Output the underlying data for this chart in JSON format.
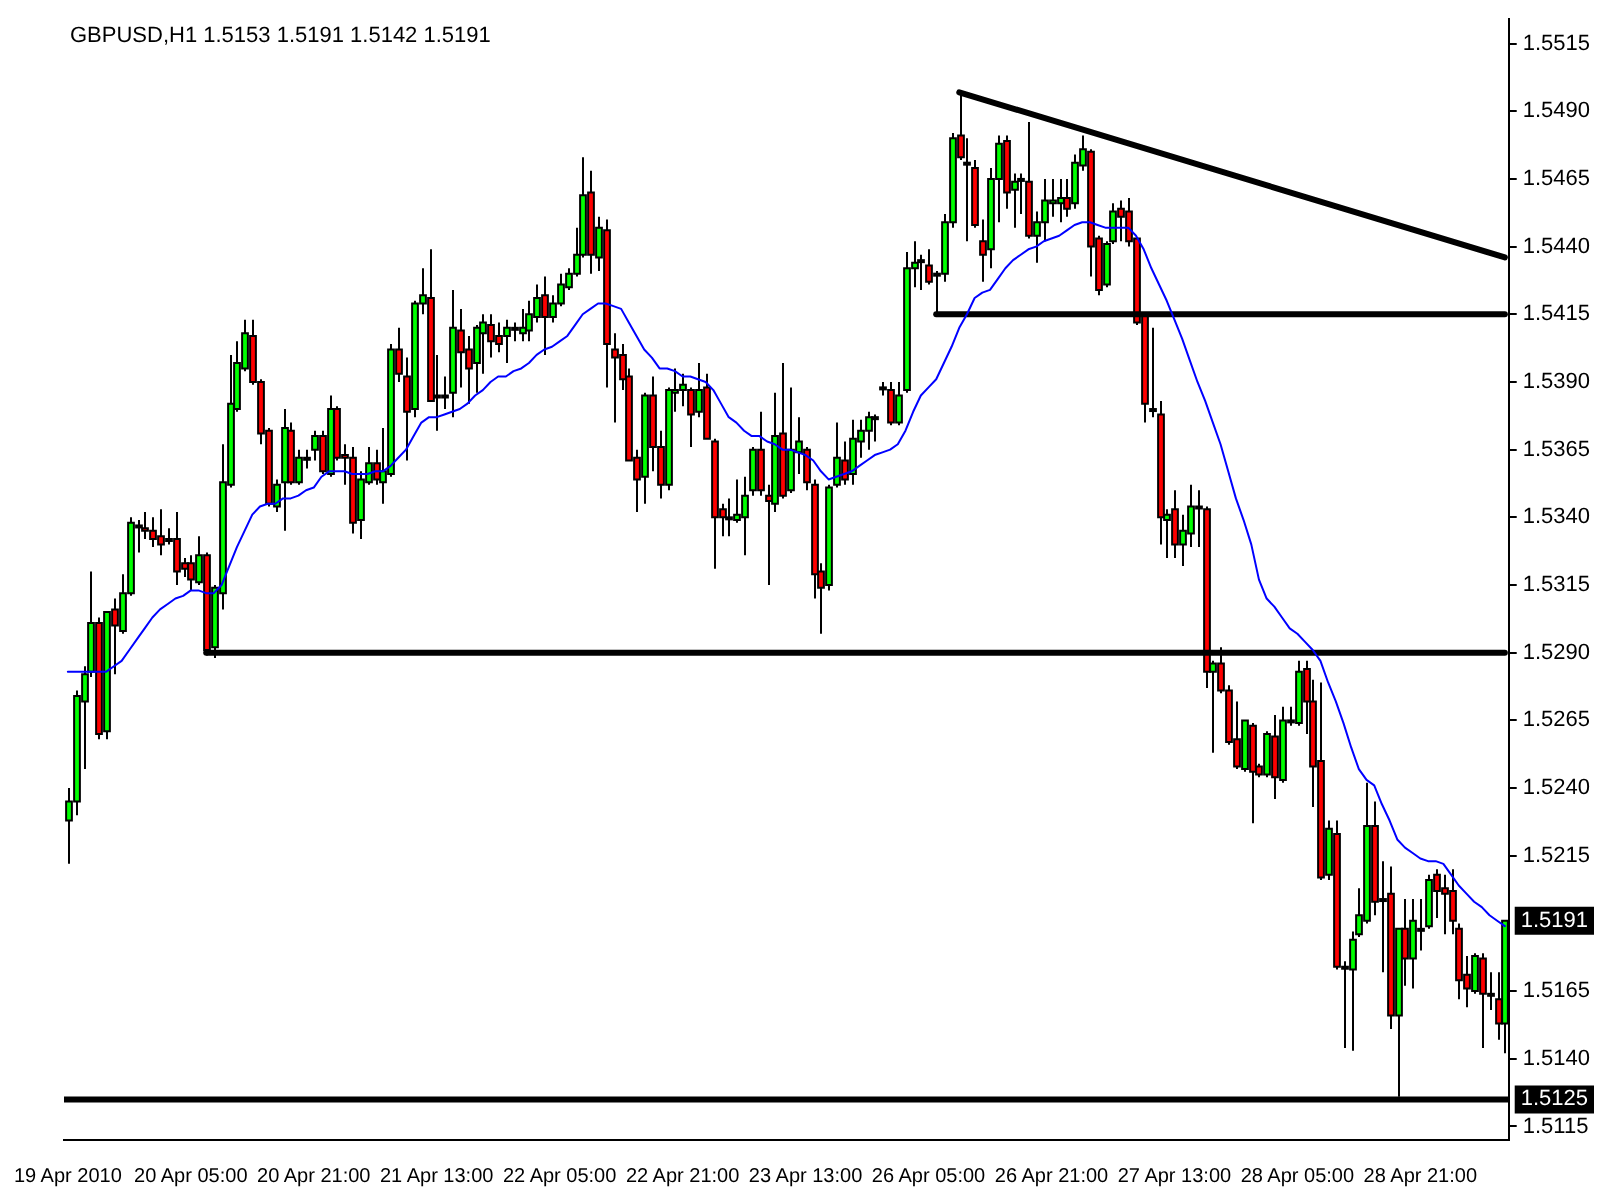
{
  "chart_data": {
    "type": "candlestick",
    "title": "GBPUSD,H1 1.5153 1.5191 1.5142 1.5191",
    "categories": [
      "19 Apr 2010",
      null,
      null,
      null,
      null,
      null,
      null,
      null,
      null,
      null,
      null,
      null,
      null,
      null,
      null,
      null,
      "20 Apr 05:00",
      null,
      null,
      null,
      null,
      null,
      null,
      null,
      null,
      null,
      null,
      null,
      null,
      null,
      null,
      null,
      "20 Apr 21:00",
      null,
      null,
      null,
      null,
      null,
      null,
      null,
      null,
      null,
      null,
      null,
      null,
      null,
      null,
      null,
      "21 Apr 13:00",
      null,
      null,
      null,
      null,
      null,
      null,
      null,
      null,
      null,
      null,
      null,
      null,
      null,
      null,
      null,
      "22 Apr 05:00",
      null,
      null,
      null,
      null,
      null,
      null,
      null,
      null,
      null,
      null,
      null,
      null,
      null,
      null,
      null,
      "22 Apr 21:00",
      null,
      null,
      null,
      null,
      null,
      null,
      null,
      null,
      null,
      null,
      null,
      null,
      null,
      null,
      null,
      "23 Apr 13:00",
      null,
      null,
      null,
      null,
      null,
      null,
      null,
      null,
      null,
      null,
      null,
      null,
      null,
      null,
      null,
      "26 Apr 05:00",
      null,
      null,
      null,
      null,
      null,
      null,
      null,
      null,
      null,
      null,
      null,
      null,
      null,
      null,
      null,
      "26 Apr 21:00",
      null,
      null,
      null,
      null,
      null,
      null,
      null,
      null,
      null,
      null,
      null,
      null,
      null,
      null,
      null,
      "27 Apr 13:00",
      null,
      null,
      null,
      null,
      null,
      null,
      null,
      null,
      null,
      null,
      null,
      null,
      null,
      null,
      null,
      "28 Apr 05:00",
      null,
      null,
      null,
      null,
      null,
      null,
      null,
      null,
      null,
      null,
      null,
      null,
      null,
      null,
      null,
      "28 Apr 21:00",
      null,
      null,
      null,
      null,
      null,
      null,
      null,
      null,
      null,
      null,
      null
    ],
    "ohlc": [
      [
        1.5228,
        1.524,
        1.5212,
        1.5235
      ],
      [
        1.5235,
        1.5276,
        1.523,
        1.5274
      ],
      [
        1.5272,
        1.5285,
        1.5247,
        1.5282
      ],
      [
        1.5283,
        1.532,
        1.5281,
        1.5301
      ],
      [
        1.5301,
        1.5303,
        1.5258,
        1.526
      ],
      [
        1.5261,
        1.5305,
        1.5258,
        1.5305
      ],
      [
        1.5306,
        1.531,
        1.5282,
        1.53
      ],
      [
        1.5298,
        1.5319,
        1.5297,
        1.5312
      ],
      [
        1.5312,
        1.534,
        1.5311,
        1.5338
      ],
      [
        1.5337,
        1.5339,
        1.5327,
        1.5337
      ],
      [
        1.5336,
        1.5342,
        1.5332,
        1.5335
      ],
      [
        1.5335,
        1.534,
        1.5329,
        1.5332
      ],
      [
        1.5333,
        1.5343,
        1.5326,
        1.533
      ],
      [
        1.5332,
        1.5336,
        1.533,
        1.5332
      ],
      [
        1.5332,
        1.5342,
        1.5315,
        1.532
      ],
      [
        1.5323,
        1.5325,
        1.5318,
        1.5321
      ],
      [
        1.5323,
        1.5326,
        1.5313,
        1.5317
      ],
      [
        1.5316,
        1.5333,
        1.5315,
        1.5326
      ],
      [
        1.5326,
        1.5327,
        1.5289,
        1.5291
      ],
      [
        1.5292,
        1.5315,
        1.5288,
        1.5314
      ],
      [
        1.5312,
        1.5367,
        1.5306,
        1.5353
      ],
      [
        1.5352,
        1.54,
        1.5351,
        1.5382
      ],
      [
        1.538,
        1.5405,
        1.5379,
        1.5397
      ],
      [
        1.5395,
        1.5413,
        1.5394,
        1.5408
      ],
      [
        1.5407,
        1.5413,
        1.5389,
        1.539
      ],
      [
        1.539,
        1.5391,
        1.5367,
        1.5371
      ],
      [
        1.5372,
        1.5373,
        1.5344,
        1.5345
      ],
      [
        1.5344,
        1.5354,
        1.5342,
        1.5352
      ],
      [
        1.5353,
        1.538,
        1.5335,
        1.5373
      ],
      [
        1.5372,
        1.5375,
        1.5352,
        1.5353
      ],
      [
        1.5353,
        1.5365,
        1.5352,
        1.5362
      ],
      [
        1.5362,
        1.5365,
        1.5358,
        1.5362
      ],
      [
        1.5365,
        1.5372,
        1.5361,
        1.537
      ],
      [
        1.537,
        1.5372,
        1.5356,
        1.5357
      ],
      [
        1.5356,
        1.5385,
        1.5355,
        1.538
      ],
      [
        1.538,
        1.5381,
        1.5361,
        1.5362
      ],
      [
        1.5363,
        1.5367,
        1.5352,
        1.5362
      ],
      [
        1.5362,
        1.5366,
        1.5334,
        1.5338
      ],
      [
        1.5339,
        1.5357,
        1.5332,
        1.5354
      ],
      [
        1.5353,
        1.5366,
        1.5352,
        1.536
      ],
      [
        1.536,
        1.5365,
        1.5352,
        1.5354
      ],
      [
        1.5353,
        1.5373,
        1.5345,
        1.5357
      ],
      [
        1.5356,
        1.5404,
        1.5355,
        1.5402
      ],
      [
        1.5402,
        1.541,
        1.539,
        1.5393
      ],
      [
        1.5392,
        1.5399,
        1.5361,
        1.5379
      ],
      [
        1.538,
        1.542,
        1.5377,
        1.5419
      ],
      [
        1.5419,
        1.5432,
        1.5415,
        1.5422
      ],
      [
        1.5421,
        1.5439,
        1.5383,
        1.5383
      ],
      [
        1.5385,
        1.54,
        1.5372,
        1.5385
      ],
      [
        1.5385,
        1.5392,
        1.538,
        1.5385
      ],
      [
        1.5386,
        1.5424,
        1.5377,
        1.541
      ],
      [
        1.5409,
        1.5417,
        1.5388,
        1.5401
      ],
      [
        1.5402,
        1.5407,
        1.5382,
        1.5395
      ],
      [
        1.5397,
        1.5411,
        1.5386,
        1.541
      ],
      [
        1.5408,
        1.5415,
        1.5393,
        1.5412
      ],
      [
        1.5411,
        1.5415,
        1.5399,
        1.5405
      ],
      [
        1.5407,
        1.5412,
        1.5401,
        1.5404
      ],
      [
        1.5407,
        1.5413,
        1.5397,
        1.541
      ],
      [
        1.541,
        1.5412,
        1.5405,
        1.541
      ],
      [
        1.5408,
        1.5417,
        1.5405,
        1.541
      ],
      [
        1.5409,
        1.542,
        1.5405,
        1.5415
      ],
      [
        1.5414,
        1.5426,
        1.5412,
        1.5421
      ],
      [
        1.5422,
        1.5429,
        1.54,
        1.5414
      ],
      [
        1.5414,
        1.5422,
        1.5412,
        1.5419
      ],
      [
        1.5419,
        1.543,
        1.5418,
        1.5426
      ],
      [
        1.5425,
        1.5432,
        1.5424,
        1.543
      ],
      [
        1.543,
        1.5447,
        1.5429,
        1.5437
      ],
      [
        1.5437,
        1.5473,
        1.5436,
        1.5459
      ],
      [
        1.546,
        1.5468,
        1.543,
        1.5437
      ],
      [
        1.5436,
        1.5451,
        1.5431,
        1.5447
      ],
      [
        1.5446,
        1.545,
        1.5388,
        1.5404
      ],
      [
        1.5402,
        1.5408,
        1.5375,
        1.5399
      ],
      [
        1.54,
        1.5404,
        1.5387,
        1.5391
      ],
      [
        1.5392,
        1.5395,
        1.5361,
        1.5361
      ],
      [
        1.5362,
        1.5365,
        1.5342,
        1.5354
      ],
      [
        1.5355,
        1.5386,
        1.5345,
        1.5385
      ],
      [
        1.5385,
        1.5392,
        1.5357,
        1.5366
      ],
      [
        1.5366,
        1.5372,
        1.5347,
        1.5352
      ],
      [
        1.5352,
        1.5388,
        1.535,
        1.5387
      ],
      [
        1.5386,
        1.5395,
        1.5379,
        1.5387
      ],
      [
        1.5387,
        1.5393,
        1.5381,
        1.5389
      ],
      [
        1.5387,
        1.5388,
        1.5366,
        1.5378
      ],
      [
        1.5379,
        1.5397,
        1.5377,
        1.5387
      ],
      [
        1.5388,
        1.5393,
        1.5369,
        1.5369
      ],
      [
        1.5368,
        1.5369,
        1.5321,
        1.534
      ],
      [
        1.5343,
        1.5345,
        1.5333,
        1.534
      ],
      [
        1.534,
        1.5347,
        1.5333,
        1.534
      ],
      [
        1.5339,
        1.5354,
        1.5338,
        1.5341
      ],
      [
        1.534,
        1.5355,
        1.5326,
        1.5348
      ],
      [
        1.535,
        1.5366,
        1.5348,
        1.5365
      ],
      [
        1.5365,
        1.5379,
        1.5348,
        1.535
      ],
      [
        1.5348,
        1.5352,
        1.5315,
        1.5346
      ],
      [
        1.5345,
        1.5386,
        1.5342,
        1.537
      ],
      [
        1.5371,
        1.5397,
        1.5347,
        1.5348
      ],
      [
        1.535,
        1.5388,
        1.5349,
        1.5365
      ],
      [
        1.5364,
        1.5377,
        1.5356,
        1.5368
      ],
      [
        1.5365,
        1.5366,
        1.535,
        1.5353
      ],
      [
        1.5352,
        1.5354,
        1.531,
        1.5319
      ],
      [
        1.532,
        1.5323,
        1.5297,
        1.5314
      ],
      [
        1.5315,
        1.5352,
        1.5313,
        1.5351
      ],
      [
        1.5352,
        1.5375,
        1.5351,
        1.5362
      ],
      [
        1.5361,
        1.5368,
        1.5352,
        1.5354
      ],
      [
        1.5356,
        1.5376,
        1.5352,
        1.5369
      ],
      [
        1.5368,
        1.5376,
        1.5362,
        1.5372
      ],
      [
        1.5372,
        1.5379,
        1.5365,
        1.5377
      ],
      [
        1.5377,
        1.5378,
        1.5368,
        1.5377
      ],
      [
        1.5388,
        1.539,
        1.5385,
        1.5388
      ],
      [
        1.5387,
        1.539,
        1.5374,
        1.5375
      ],
      [
        1.5375,
        1.539,
        1.5374,
        1.5385
      ],
      [
        1.5387,
        1.5438,
        1.5386,
        1.5432
      ],
      [
        1.5432,
        1.5442,
        1.5425,
        1.5434
      ],
      [
        1.5435,
        1.5437,
        1.5424,
        1.5435
      ],
      [
        1.5433,
        1.5439,
        1.5426,
        1.5427
      ],
      [
        1.543,
        1.5431,
        1.5415,
        1.543
      ],
      [
        1.543,
        1.5452,
        1.5427,
        1.5449
      ],
      [
        1.5449,
        1.5482,
        1.5447,
        1.548
      ],
      [
        1.5481,
        1.5497,
        1.5472,
        1.5473
      ],
      [
        1.5471,
        1.548,
        1.5442,
        1.5471
      ],
      [
        1.5469,
        1.5472,
        1.5447,
        1.5448
      ],
      [
        1.5442,
        1.545,
        1.5427,
        1.5437
      ],
      [
        1.5439,
        1.5469,
        1.5432,
        1.5465
      ],
      [
        1.5465,
        1.5481,
        1.5449,
        1.5478
      ],
      [
        1.5479,
        1.5481,
        1.5454,
        1.546
      ],
      [
        1.5461,
        1.5467,
        1.5447,
        1.5464
      ],
      [
        1.5465,
        1.5467,
        1.5452,
        1.5465
      ],
      [
        1.5464,
        1.5486,
        1.5443,
        1.5444
      ],
      [
        1.5444,
        1.5453,
        1.5434,
        1.5449
      ],
      [
        1.5449,
        1.5465,
        1.5442,
        1.5457
      ],
      [
        1.5456,
        1.5465,
        1.5451,
        1.5457
      ],
      [
        1.5456,
        1.5465,
        1.5449,
        1.5458
      ],
      [
        1.5458,
        1.5465,
        1.5451,
        1.5454
      ],
      [
        1.5456,
        1.5474,
        1.5454,
        1.5471
      ],
      [
        1.547,
        1.5481,
        1.5468,
        1.5476
      ],
      [
        1.5475,
        1.5476,
        1.5429,
        1.544
      ],
      [
        1.5443,
        1.5444,
        1.5422,
        1.5424
      ],
      [
        1.5426,
        1.5442,
        1.5425,
        1.5441
      ],
      [
        1.5442,
        1.5456,
        1.5441,
        1.5453
      ],
      [
        1.5454,
        1.5457,
        1.5442,
        1.5451
      ],
      [
        1.5453,
        1.5458,
        1.544,
        1.5442
      ],
      [
        1.5443,
        1.5443,
        1.5411,
        1.5412
      ],
      [
        1.5415,
        1.5415,
        1.5375,
        1.5382
      ],
      [
        1.538,
        1.541,
        1.5377,
        1.538
      ],
      [
        1.5378,
        1.5383,
        1.533,
        1.534
      ],
      [
        1.5339,
        1.5343,
        1.5325,
        1.5341
      ],
      [
        1.5343,
        1.535,
        1.5325,
        1.533
      ],
      [
        1.533,
        1.5341,
        1.5322,
        1.5335
      ],
      [
        1.5334,
        1.5352,
        1.5329,
        1.5344
      ],
      [
        1.5344,
        1.535,
        1.5329,
        1.5344
      ],
      [
        1.5343,
        1.5344,
        1.5277,
        1.5283
      ],
      [
        1.5283,
        1.5287,
        1.5253,
        1.5286
      ],
      [
        1.5286,
        1.5292,
        1.5275,
        1.5276
      ],
      [
        1.5276,
        1.5278,
        1.5256,
        1.5257
      ],
      [
        1.5258,
        1.5272,
        1.5247,
        1.5248
      ],
      [
        1.5247,
        1.5265,
        1.5246,
        1.5265
      ],
      [
        1.5263,
        1.5264,
        1.5227,
        1.5246
      ],
      [
        1.5248,
        1.5249,
        1.5244,
        1.5245
      ],
      [
        1.5245,
        1.5261,
        1.5244,
        1.526
      ],
      [
        1.5259,
        1.5267,
        1.5236,
        1.5244
      ],
      [
        1.5243,
        1.527,
        1.5242,
        1.5265
      ],
      [
        1.5265,
        1.527,
        1.5263,
        1.5265
      ],
      [
        1.5264,
        1.5287,
        1.5263,
        1.5283
      ],
      [
        1.5284,
        1.5287,
        1.526,
        1.5272
      ],
      [
        1.5272,
        1.528,
        1.5233,
        1.5248
      ],
      [
        1.525,
        1.5279,
        1.5206,
        1.5207
      ],
      [
        1.5208,
        1.5228,
        1.5206,
        1.5225
      ],
      [
        1.5223,
        1.5228,
        1.5173,
        1.5174
      ],
      [
        1.5174,
        1.5176,
        1.5144,
        1.5174
      ],
      [
        1.5173,
        1.5187,
        1.5143,
        1.5184
      ],
      [
        1.5186,
        1.5203,
        1.5185,
        1.5193
      ],
      [
        1.5191,
        1.5242,
        1.519,
        1.5226
      ],
      [
        1.5226,
        1.5235,
        1.5193,
        1.5198
      ],
      [
        1.5199,
        1.5213,
        1.5172,
        1.5199
      ],
      [
        1.5201,
        1.5211,
        1.5151,
        1.5156
      ],
      [
        1.5156,
        1.5188,
        1.5126,
        1.5188
      ],
      [
        1.5188,
        1.5199,
        1.5167,
        1.5177
      ],
      [
        1.5177,
        1.5199,
        1.5166,
        1.5191
      ],
      [
        1.5188,
        1.5199,
        1.518,
        1.5188
      ],
      [
        1.5189,
        1.5208,
        1.5188,
        1.5206
      ],
      [
        1.5208,
        1.521,
        1.5192,
        1.5202
      ],
      [
        1.5203,
        1.5208,
        1.5186,
        1.5201
      ],
      [
        1.5202,
        1.521,
        1.5186,
        1.5191
      ],
      [
        1.5188,
        1.519,
        1.5162,
        1.5169
      ],
      [
        1.5171,
        1.5178,
        1.5159,
        1.5166
      ],
      [
        1.5165,
        1.5179,
        1.5164,
        1.5178
      ],
      [
        1.5177,
        1.5179,
        1.5144,
        1.5164
      ],
      [
        1.5164,
        1.5172,
        1.5158,
        1.5164
      ],
      [
        1.5162,
        1.5172,
        1.5147,
        1.5153
      ],
      [
        1.5153,
        1.5191,
        1.5142,
        1.5191
      ]
    ],
    "series": [
      {
        "type": "line",
        "color": "#0000ff",
        "values": [
          1.5283,
          1.5283,
          1.5283,
          1.5283,
          1.5283,
          1.5283,
          1.5285,
          1.5287,
          1.5291,
          1.5295,
          1.5299,
          1.5303,
          1.5306,
          1.5308,
          1.531,
          1.5311,
          1.5313,
          1.5313,
          1.5312,
          1.5312,
          1.5315,
          1.5322,
          1.5329,
          1.5335,
          1.5341,
          1.5344,
          1.5345,
          1.5345,
          1.5347,
          1.5347,
          1.5348,
          1.535,
          1.5351,
          1.5355,
          1.5357,
          1.5357,
          1.5357,
          1.5356,
          1.5356,
          1.5356,
          1.5357,
          1.5357,
          1.5359,
          1.5362,
          1.5365,
          1.537,
          1.5375,
          1.5377,
          1.5377,
          1.5378,
          1.5379,
          1.538,
          1.5382,
          1.5385,
          1.5387,
          1.539,
          1.5392,
          1.5392,
          1.5394,
          1.5395,
          1.5397,
          1.54,
          1.5402,
          1.5403,
          1.5405,
          1.5407,
          1.5411,
          1.5415,
          1.5417,
          1.5419,
          1.5419,
          1.5418,
          1.5417,
          1.5412,
          1.5407,
          1.5402,
          1.5399,
          1.5395,
          1.5395,
          1.5394,
          1.5392,
          1.5392,
          1.5391,
          1.539,
          1.5387,
          1.5382,
          1.5377,
          1.5375,
          1.5372,
          1.537,
          1.537,
          1.5368,
          1.5367,
          1.5365,
          1.5365,
          1.5364,
          1.5363,
          1.5361,
          1.5357,
          1.5354,
          1.5355,
          1.5356,
          1.5357,
          1.5359,
          1.5361,
          1.5363,
          1.5364,
          1.5365,
          1.5367,
          1.5372,
          1.5379,
          1.5385,
          1.5388,
          1.5391,
          1.5397,
          1.5403,
          1.541,
          1.5415,
          1.5421,
          1.5423,
          1.5424,
          1.5428,
          1.5432,
          1.5435,
          1.5437,
          1.5439,
          1.544,
          1.5442,
          1.5443,
          1.5444,
          1.5446,
          1.5448,
          1.5449,
          1.5449,
          1.5448,
          1.5447,
          1.5447,
          1.5447,
          1.5447,
          1.5444,
          1.5439,
          1.5432,
          1.5426,
          1.542,
          1.5413,
          1.5406,
          1.5398,
          1.539,
          1.5383,
          1.5375,
          1.5367,
          1.5357,
          1.5347,
          1.5339,
          1.533,
          1.5317,
          1.531,
          1.5307,
          1.5303,
          1.5299,
          1.5297,
          1.5294,
          1.5291,
          1.5287,
          1.5279,
          1.5272,
          1.5264,
          1.5255,
          1.5247,
          1.5243,
          1.5241,
          1.5234,
          1.5228,
          1.5221,
          1.5218,
          1.5216,
          1.5214,
          1.5213,
          1.5213,
          1.5212,
          1.5208,
          1.5204,
          1.5201,
          1.5198,
          1.5196,
          1.5193,
          1.5191,
          1.5189
        ]
      },
      {
        "type": "line",
        "color": "#000000",
        "values": [
          null,
          null,
          null,
          null,
          null,
          null,
          null,
          null,
          null,
          null,
          null,
          null,
          null,
          null,
          null,
          null,
          null,
          null,
          null,
          null,
          null,
          null,
          null,
          null,
          null,
          null,
          null,
          null,
          null,
          null,
          null,
          null,
          null,
          null,
          null,
          null,
          null,
          null,
          null,
          null,
          null,
          null,
          null,
          null,
          null,
          null,
          null,
          null,
          null,
          null,
          null,
          null,
          null,
          null,
          null,
          null,
          null,
          null,
          null,
          null,
          null,
          null,
          null,
          null,
          null,
          null,
          null,
          null,
          null,
          null,
          null,
          null,
          null,
          null,
          null,
          null,
          null,
          null,
          null,
          null,
          null,
          null,
          null,
          null,
          null,
          null,
          null,
          null,
          null,
          null,
          null,
          null,
          null,
          null,
          null,
          null,
          null,
          null,
          null,
          null,
          null,
          null,
          null,
          null,
          null,
          null,
          null,
          null,
          null,
          null,
          null,
          null,
          null,
          null,
          null,
          null,
          1.5497,
          null,
          null,
          null,
          null,
          null,
          null,
          null,
          null,
          null,
          null,
          null,
          null,
          null,
          null,
          null,
          null,
          null,
          null,
          null,
          null,
          null,
          null,
          null,
          null,
          null,
          null,
          null,
          null,
          null,
          null,
          null,
          null,
          null,
          null,
          null,
          null,
          null,
          null,
          null,
          null,
          null,
          null,
          null,
          null,
          null,
          null,
          null,
          null,
          null,
          null,
          null,
          null,
          null,
          null,
          null,
          null,
          null,
          null,
          null,
          null,
          null,
          null,
          null,
          null,
          null,
          null,
          null,
          null,
          null,
          null,
          1.5436
        ]
      },
      {
        "type": "line",
        "color": "#000000",
        "values": [
          null,
          null,
          null,
          null,
          null,
          null,
          null,
          null,
          null,
          null,
          null,
          null,
          null,
          null,
          null,
          null,
          null,
          null,
          null,
          null,
          null,
          null,
          null,
          null,
          null,
          null,
          null,
          null,
          null,
          null,
          null,
          null,
          null,
          null,
          null,
          null,
          null,
          null,
          null,
          null,
          null,
          null,
          null,
          null,
          null,
          null,
          null,
          null,
          null,
          null,
          null,
          null,
          null,
          null,
          null,
          null,
          null,
          null,
          null,
          null,
          null,
          null,
          null,
          null,
          null,
          null,
          null,
          null,
          null,
          null,
          null,
          null,
          null,
          null,
          null,
          null,
          null,
          null,
          null,
          null,
          null,
          null,
          null,
          null,
          null,
          null,
          null,
          null,
          null,
          null,
          null,
          null,
          null,
          null,
          null,
          null,
          null,
          null,
          null,
          null,
          null,
          null,
          null,
          null,
          null,
          null,
          null,
          null,
          null,
          null,
          null,
          null,
          null,
          1.5415,
          null,
          null,
          null,
          null,
          null,
          null,
          null,
          null,
          null,
          null,
          null,
          null,
          null,
          null,
          null,
          null,
          null,
          null,
          null,
          null,
          null,
          null,
          null,
          null,
          null,
          null,
          null,
          null,
          null,
          null,
          null,
          null,
          null,
          null,
          null,
          null,
          null,
          null,
          null,
          null,
          null,
          null,
          null,
          null,
          null,
          null,
          null,
          null,
          null,
          null,
          null,
          null,
          null,
          null,
          null,
          null,
          null,
          null,
          null,
          null,
          null,
          null,
          null,
          null,
          null,
          null,
          null,
          null,
          null,
          null,
          null,
          null,
          null,
          1.5415
        ]
      },
      {
        "type": "line",
        "color": "#000000",
        "values": [
          null,
          null,
          null,
          null,
          null,
          null,
          null,
          null,
          null,
          null,
          null,
          null,
          null,
          null,
          null,
          null,
          null,
          null,
          1.529,
          null,
          null,
          null,
          null,
          null,
          null,
          null,
          null,
          null,
          null,
          null,
          null,
          null,
          null,
          null,
          null,
          null,
          null,
          null,
          null,
          null,
          null,
          null,
          null,
          null,
          null,
          null,
          null,
          null,
          null,
          null,
          null,
          null,
          null,
          null,
          null,
          null,
          null,
          null,
          null,
          null,
          null,
          null,
          null,
          null,
          null,
          null,
          null,
          null,
          null,
          null,
          null,
          null,
          null,
          null,
          null,
          null,
          null,
          null,
          null,
          null,
          null,
          null,
          null,
          null,
          null,
          null,
          null,
          null,
          null,
          null,
          null,
          null,
          null,
          null,
          null,
          null,
          null,
          null,
          null,
          null,
          null,
          null,
          null,
          null,
          null,
          null,
          null,
          null,
          null,
          null,
          null,
          null,
          null,
          null,
          null,
          null,
          null,
          null,
          null,
          null,
          null,
          null,
          null,
          null,
          null,
          null,
          null,
          null,
          null,
          null,
          null,
          null,
          null,
          null,
          null,
          null,
          null,
          null,
          null,
          null,
          null,
          null,
          null,
          null,
          null,
          null,
          null,
          null,
          null,
          null,
          null,
          null,
          null,
          null,
          null,
          null,
          null,
          null,
          null,
          null,
          null,
          null,
          null,
          null,
          null,
          null,
          null,
          null,
          null,
          null,
          null,
          null,
          null,
          null,
          null,
          null,
          null,
          null,
          null,
          null,
          null,
          null,
          null,
          null,
          null,
          null,
          null,
          1.529
        ]
      }
    ],
    "ylim": [
      1.511,
      1.5524
    ],
    "yticks": [
      {
        "value": 1.5515,
        "label": "1.5515"
      },
      {
        "value": 1.549,
        "label": "1.5490"
      },
      {
        "value": 1.5465,
        "label": "1.5465"
      },
      {
        "value": 1.544,
        "label": "1.5440"
      },
      {
        "value": 1.5415,
        "label": "1.5415"
      },
      {
        "value": 1.539,
        "label": "1.5390"
      },
      {
        "value": 1.5365,
        "label": "1.5365"
      },
      {
        "value": 1.534,
        "label": "1.5340"
      },
      {
        "value": 1.5315,
        "label": "1.5315"
      },
      {
        "value": 1.529,
        "label": "1.5290"
      },
      {
        "value": 1.5265,
        "label": "1.5265"
      },
      {
        "value": 1.524,
        "label": "1.5240"
      },
      {
        "value": 1.5215,
        "label": "1.5215"
      },
      {
        "value": 1.5165,
        "label": "1.5165"
      },
      {
        "value": 1.514,
        "label": "1.5140"
      },
      {
        "value": 1.5115,
        "label": "1.5115"
      }
    ],
    "ref_lines": [
      {
        "axis": "y",
        "value": 1.5125,
        "label": "1.5125",
        "color": "#000000"
      }
    ],
    "annotations": [
      {
        "text": "1.5191",
        "y": 1.5191
      }
    ],
    "grid": false,
    "legend": false,
    "marker": "none"
  }
}
